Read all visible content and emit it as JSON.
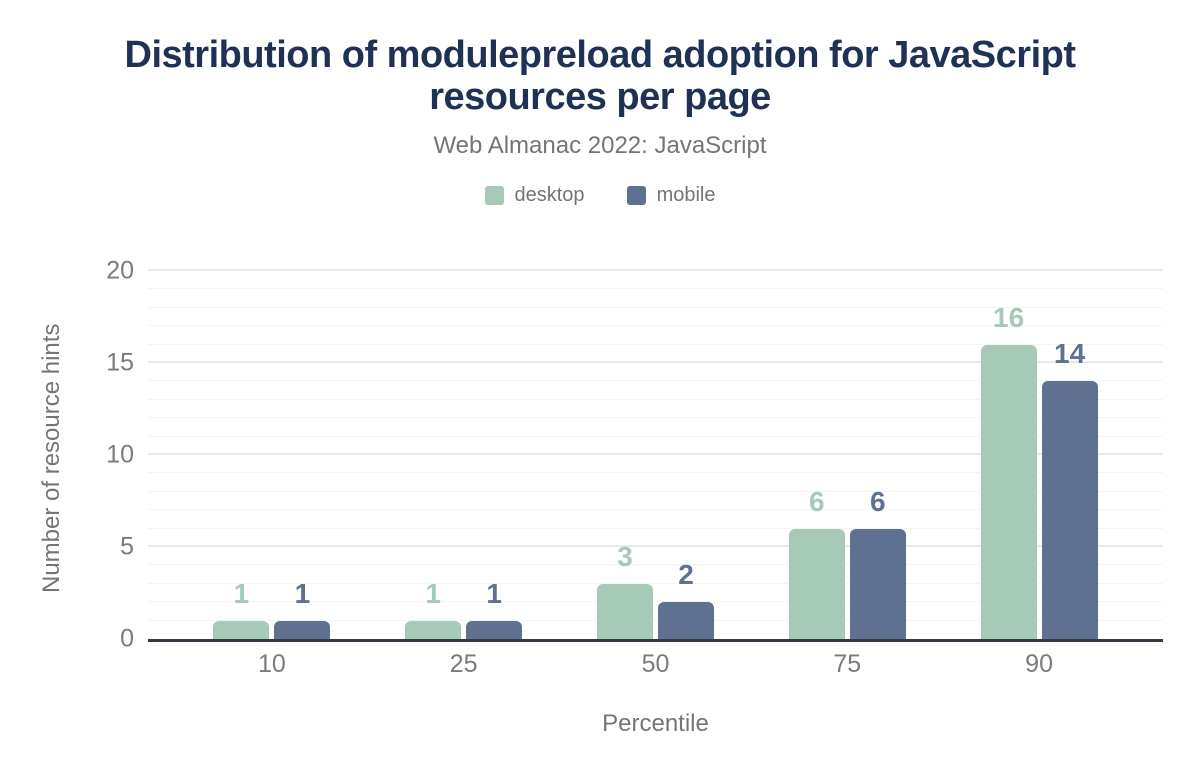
{
  "chart_data": {
    "type": "bar",
    "title": "Distribution of modulepreload adoption for JavaScript resources per page",
    "subtitle": "Web Almanac 2022: JavaScript",
    "categories": [
      "10",
      "25",
      "50",
      "75",
      "90"
    ],
    "series": [
      {
        "name": "desktop",
        "color": "#a7c9b8",
        "values": [
          1,
          1,
          3,
          6,
          16
        ]
      },
      {
        "name": "mobile",
        "color": "#5e7190",
        "values": [
          1,
          1,
          2,
          6,
          14
        ]
      }
    ],
    "xlabel": "Percentile",
    "ylabel": "Number of resource hints",
    "ylim": [
      0,
      20
    ],
    "yticks": [
      0,
      5,
      10,
      15,
      20
    ],
    "grid": {
      "horizontal": true,
      "minor_step": 1,
      "major_step": 5
    },
    "legend_position": "top",
    "bar_labels": true
  },
  "colors": {
    "title": "#1f3154",
    "muted_text": "#757575",
    "tick_text": "#7b7b7b",
    "axis_line": "#333b45",
    "gridline_minor": "#f4f4f4",
    "gridline_major": "#e9e9e9",
    "background": "#ffffff"
  }
}
